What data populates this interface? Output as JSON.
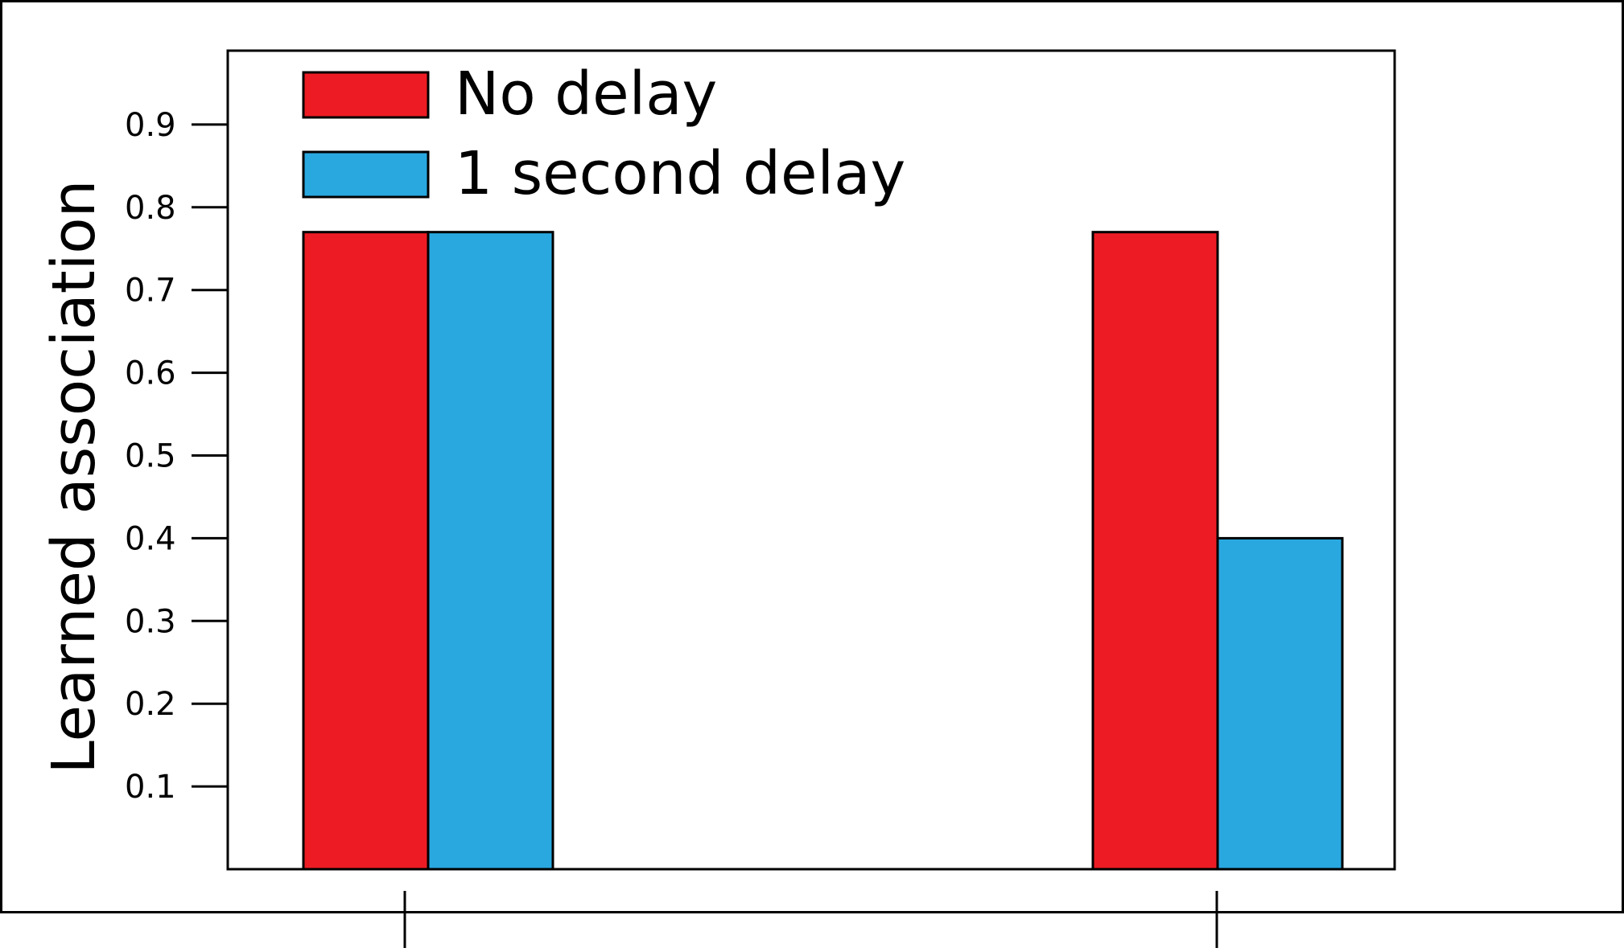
{
  "chart_data": {
    "type": "bar",
    "title": "",
    "xlabel": "",
    "ylabel": "Learned association",
    "categories": [
      "",
      ""
    ],
    "series": [
      {
        "name": "No delay",
        "values": [
          0.77,
          0.77
        ],
        "color": "#ED1C24"
      },
      {
        "name": "1 second delay",
        "values": [
          0.77,
          0.4
        ],
        "color": "#29A8E0"
      }
    ],
    "yticks": [
      "0.1",
      "0.2",
      "0.3",
      "0.4",
      "0.5",
      "0.6",
      "0.7",
      "0.8",
      "0.9"
    ],
    "ylim": [
      0.0,
      1.0
    ],
    "grid": false,
    "legend_position": "top-left"
  }
}
